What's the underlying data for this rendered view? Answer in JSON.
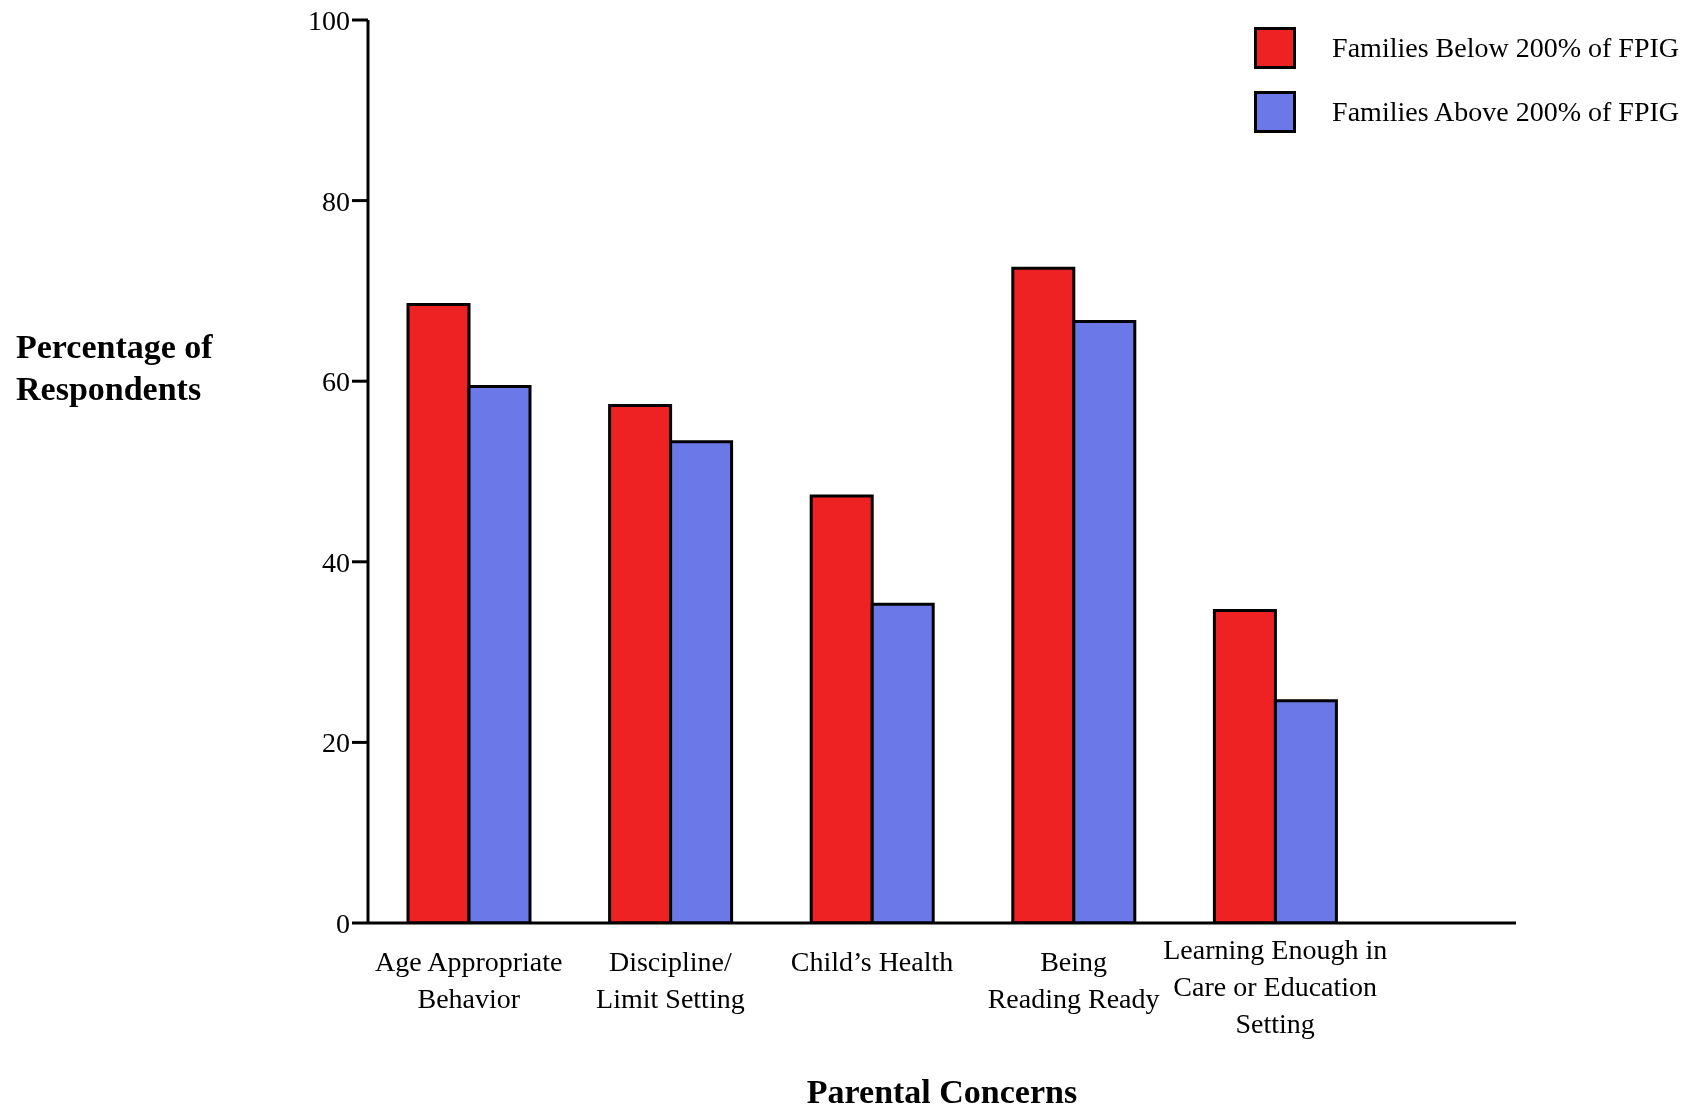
{
  "chart_data": {
    "type": "bar",
    "xlabel": "Parental Concerns",
    "ylabel": "Percentage of Respondents",
    "categories": [
      "Age Appropriate\nBehavior",
      "Discipline/\nLimit Setting",
      "Child’s Health",
      "Being\nReading Ready",
      "Learning Enough in\nCare or Education\nSetting"
    ],
    "series": [
      {
        "name": "Families Below 200% of FPIG",
        "color": "#ee2222",
        "values": [
          68.5,
          57.3,
          47.3,
          72.5,
          34.6
        ]
      },
      {
        "name": "Families Above 200% of FPIG",
        "color": "#6b78e8",
        "values": [
          59.4,
          53.3,
          35.3,
          66.6,
          24.6
        ]
      }
    ],
    "ylim": [
      0,
      100
    ],
    "yticks": [
      0,
      20,
      40,
      60,
      80,
      100
    ],
    "grid": false,
    "legend": "top right"
  }
}
